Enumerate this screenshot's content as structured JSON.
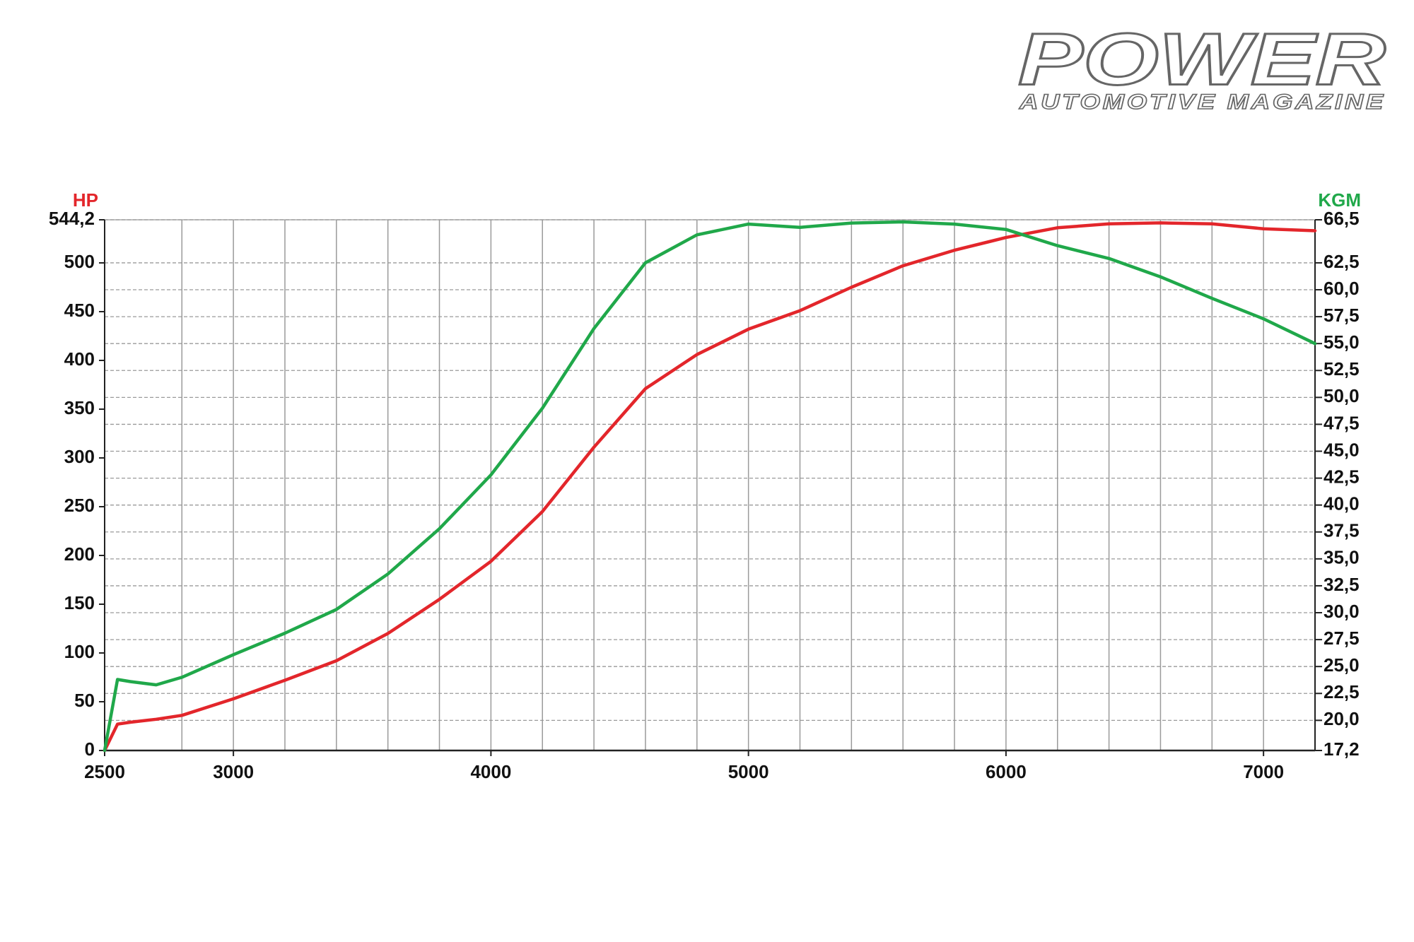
{
  "brand": {
    "title": "POWER",
    "subtitle": "AUTOMOTIVE MAGAZINE"
  },
  "chart_data": {
    "type": "line",
    "y_label": "HP",
    "y2_label": "KGM",
    "x": [
      2500,
      2550,
      2600,
      2700,
      2800,
      3000,
      3200,
      3400,
      3600,
      3800,
      4000,
      4200,
      4400,
      4600,
      4800,
      5000,
      5200,
      5400,
      5600,
      5800,
      6000,
      6200,
      6400,
      6600,
      6800,
      7000,
      7200
    ],
    "series": [
      {
        "color": "#e3262b",
        "axis": "y",
        "values": [
          0,
          27,
          29,
          32,
          36,
          53,
          72,
          92,
          120,
          155,
          194,
          245,
          311,
          371,
          406,
          432,
          451,
          475,
          497,
          513,
          526,
          536,
          540,
          541,
          540,
          535,
          533
        ]
      },
      {
        "color": "#20a84a",
        "axis": "y2",
        "values": [
          17.2,
          23.8,
          23.6,
          23.3,
          24.0,
          26.1,
          28.1,
          30.3,
          33.6,
          37.8,
          42.8,
          49.0,
          56.4,
          62.5,
          65.1,
          66.1,
          65.8,
          66.2,
          66.3,
          66.1,
          65.6,
          64.1,
          62.9,
          61.2,
          59.2,
          57.3,
          55.0
        ]
      }
    ],
    "xlim": [
      2500,
      7200
    ],
    "xticks": [
      2500,
      3000,
      4000,
      5000,
      6000,
      7000
    ],
    "x_grid": [
      2800,
      3000,
      3200,
      3400,
      3600,
      3800,
      4000,
      4200,
      4400,
      4600,
      4800,
      5000,
      5200,
      5400,
      5600,
      5800,
      6000,
      6200,
      6400,
      6600,
      6800,
      7000
    ],
    "ylim": [
      0,
      544.2
    ],
    "yticks": [
      0,
      50,
      100,
      150,
      200,
      250,
      300,
      350,
      400,
      450,
      500,
      {
        "value": 544.2,
        "label": "544,2"
      }
    ],
    "y2lim": [
      17.2,
      66.5
    ],
    "y2ticks": [
      {
        "value": 17.2,
        "label": "17,2"
      },
      {
        "value": 20,
        "label": "20,0"
      },
      {
        "value": 22.5,
        "label": "22,5"
      },
      {
        "value": 25,
        "label": "25,0"
      },
      {
        "value": 27.5,
        "label": "27,5"
      },
      {
        "value": 30,
        "label": "30,0"
      },
      {
        "value": 32.5,
        "label": "32,5"
      },
      {
        "value": 35,
        "label": "35,0"
      },
      {
        "value": 37.5,
        "label": "37,5"
      },
      {
        "value": 40,
        "label": "40,0"
      },
      {
        "value": 42.5,
        "label": "42,5"
      },
      {
        "value": 45,
        "label": "45,0"
      },
      {
        "value": 47.5,
        "label": "47,5"
      },
      {
        "value": 50,
        "label": "50,0"
      },
      {
        "value": 52.5,
        "label": "52,5"
      },
      {
        "value": 55,
        "label": "55,0"
      },
      {
        "value": 57.5,
        "label": "57,5"
      },
      {
        "value": 60,
        "label": "60,0"
      },
      {
        "value": 62.5,
        "label": "62,5"
      },
      {
        "value": 66.5,
        "label": "66,5"
      }
    ],
    "grid": true
  }
}
